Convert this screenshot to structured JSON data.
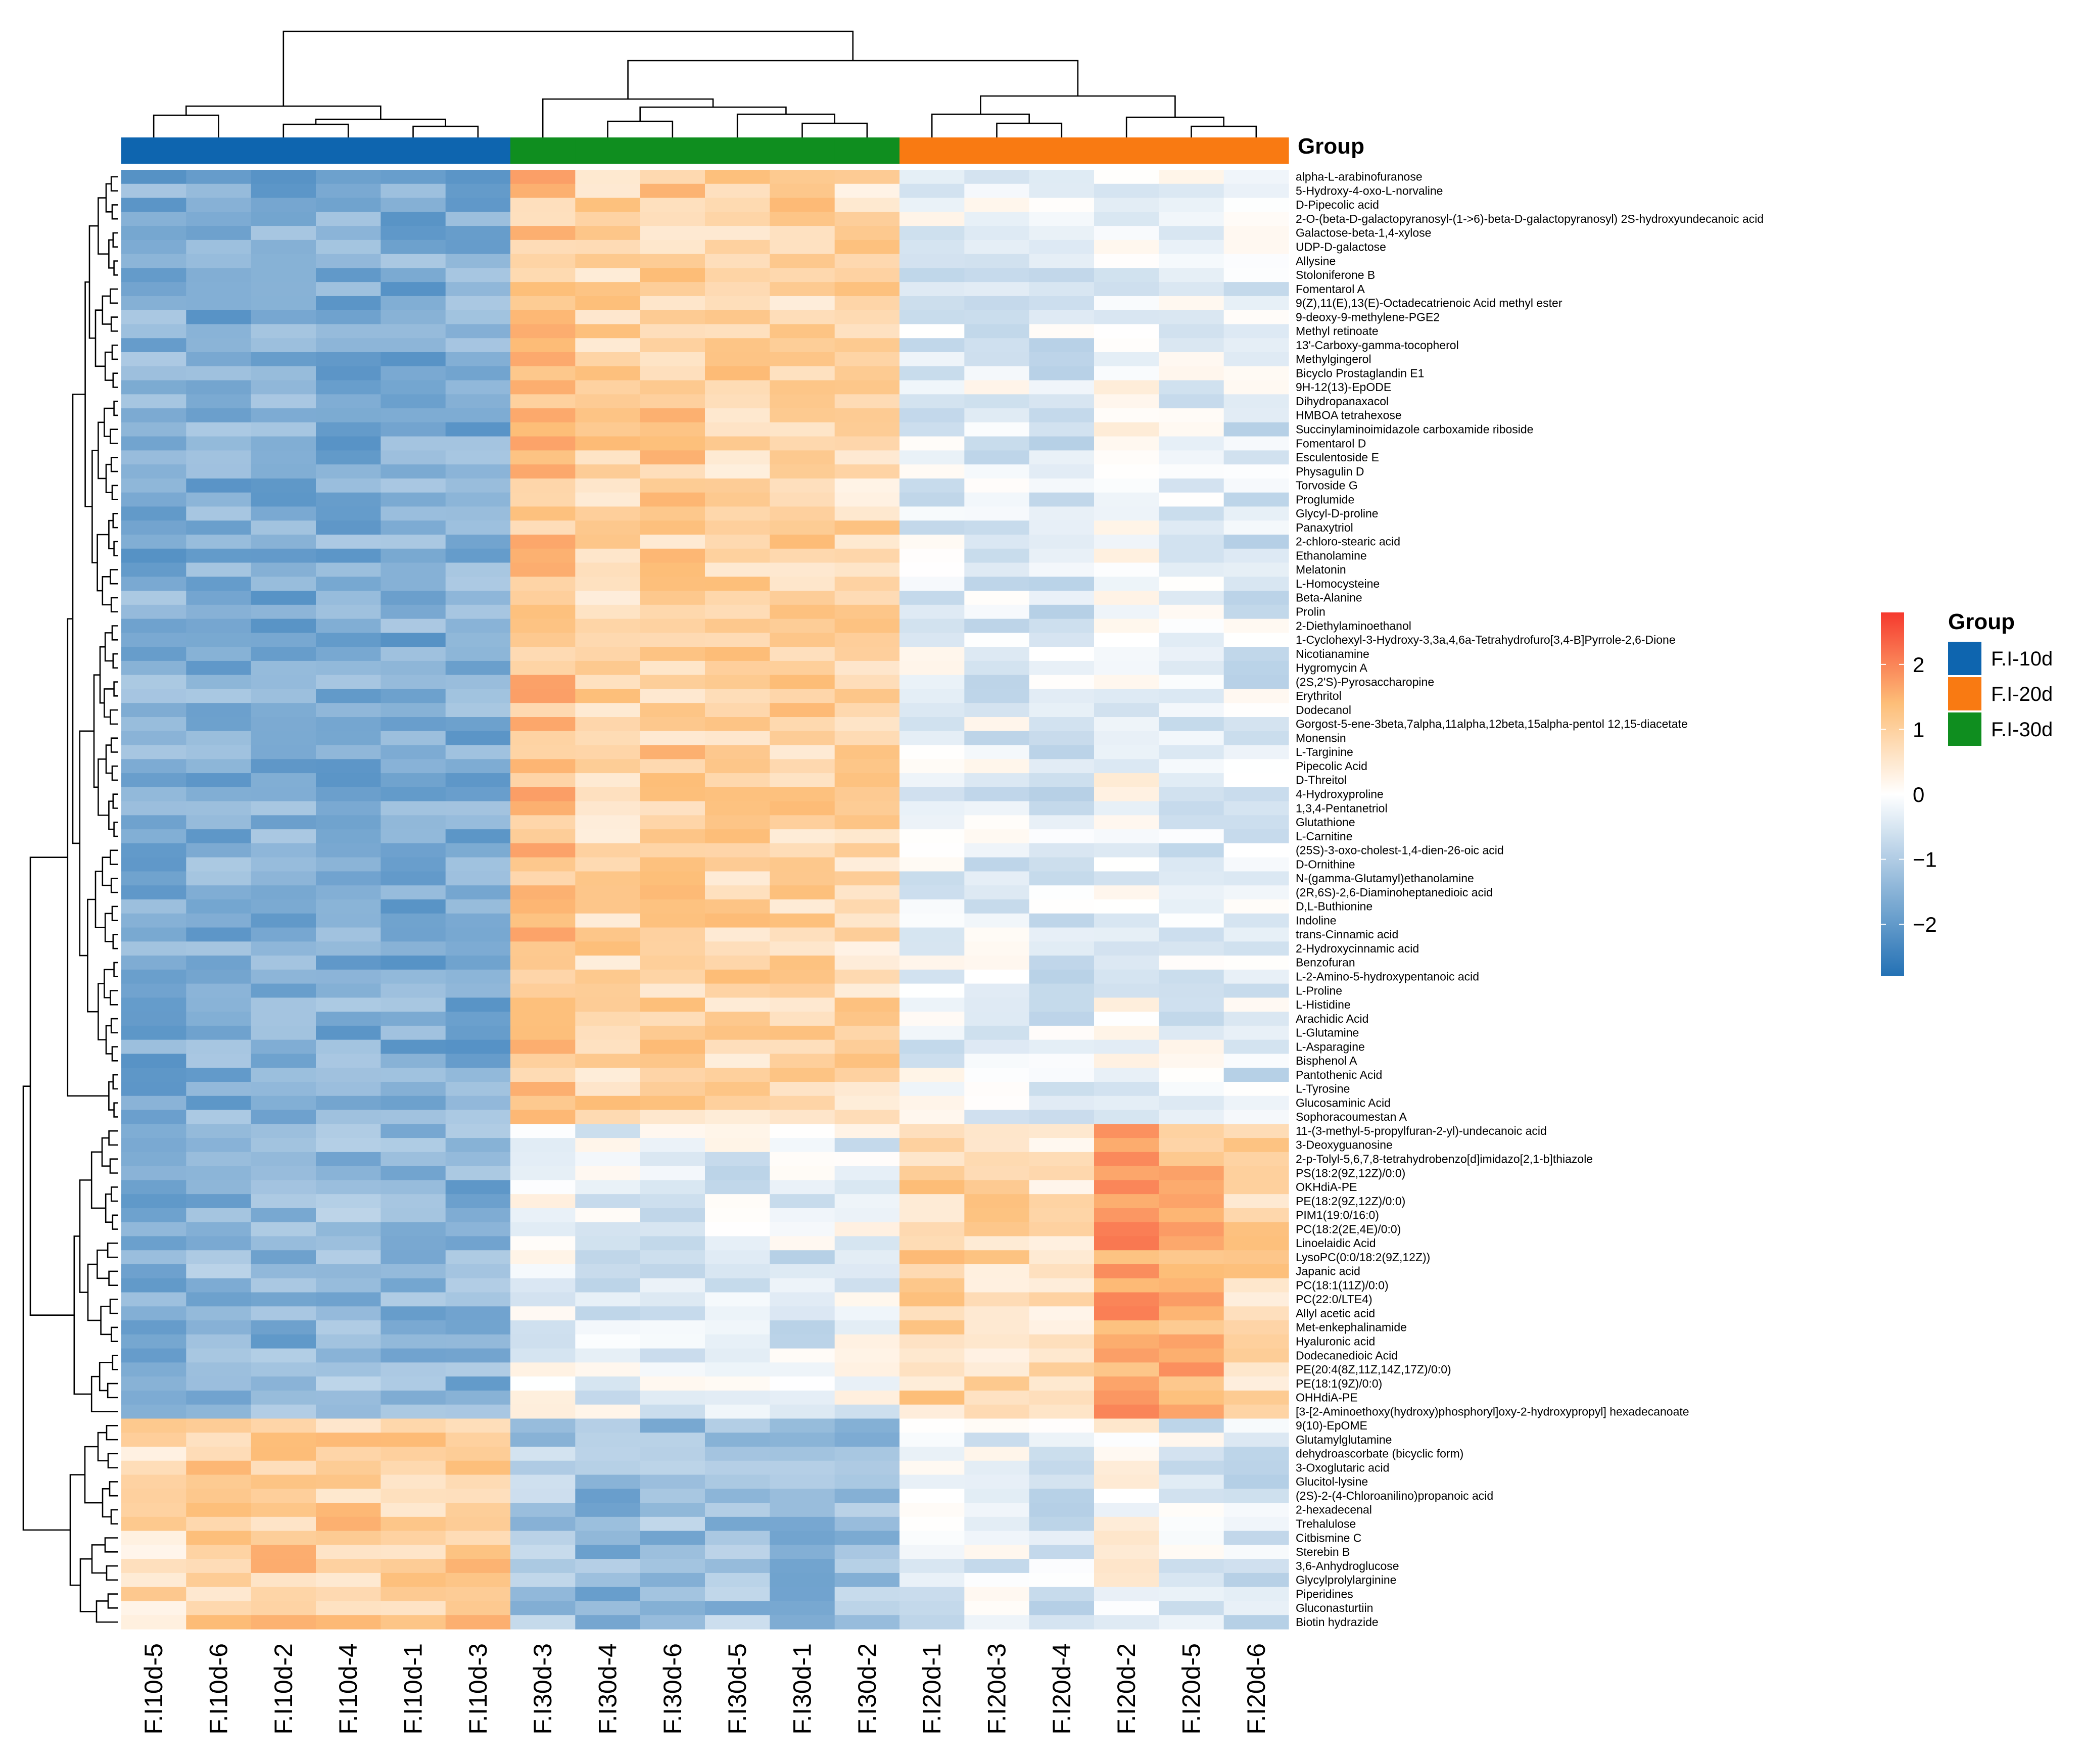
{
  "chart_data": {
    "type": "heatmap",
    "title": "",
    "annotation_title": "Group",
    "columns": [
      "F.I10d-5",
      "F.I10d-6",
      "F.I10d-2",
      "F.I10d-4",
      "F.I10d-1",
      "F.I10d-3",
      "F.I30d-3",
      "F.I30d-4",
      "F.I30d-6",
      "F.I30d-5",
      "F.I30d-1",
      "F.I30d-2",
      "F.I20d-1",
      "F.I20d-3",
      "F.I20d-4",
      "F.I20d-2",
      "F.I20d-5",
      "F.I20d-6"
    ],
    "column_groups": [
      "F.I-10d",
      "F.I-10d",
      "F.I-10d",
      "F.I-10d",
      "F.I-10d",
      "F.I-10d",
      "F.I-30d",
      "F.I-30d",
      "F.I-30d",
      "F.I-30d",
      "F.I-30d",
      "F.I-30d",
      "F.I-20d",
      "F.I-20d",
      "F.I-20d",
      "F.I-20d",
      "F.I-20d",
      "F.I-20d"
    ],
    "groups": [
      {
        "name": "F.I-10d",
        "color": "#0E65AF"
      },
      {
        "name": "F.I-20d",
        "color": "#F97A12"
      },
      {
        "name": "F.I-30d",
        "color": "#0F8E1F"
      }
    ],
    "color_scale": {
      "range": [
        -2.8,
        2.8
      ],
      "ticks": [
        -2,
        -1,
        0,
        1,
        2
      ],
      "low": "#2371B4",
      "mid": "#FFFFFF",
      "high": "#F6392E"
    },
    "row_clusters": [
      {
        "start": 0,
        "end": 67,
        "profile": [
          -1.6,
          -1.6,
          -1.6,
          -1.6,
          -1.6,
          -1.6,
          1.2,
          0.9,
          1.0,
          0.9,
          0.9,
          0.8,
          -0.3,
          -0.3,
          -0.4,
          -0.1,
          -0.3,
          -0.4
        ]
      },
      {
        "start": 68,
        "end": 88,
        "profile": [
          -1.5,
          -1.4,
          -1.5,
          -1.3,
          -1.4,
          -1.5,
          -0.1,
          -0.3,
          -0.3,
          -0.3,
          -0.4,
          -0.2,
          0.9,
          0.8,
          0.6,
          1.7,
          1.4,
          0.9
        ]
      },
      {
        "start": 89,
        "end": 103,
        "profile": [
          0.7,
          1.0,
          1.1,
          1.0,
          1.0,
          1.1,
          -1.1,
          -1.4,
          -1.3,
          -1.2,
          -1.3,
          -1.2,
          -0.3,
          -0.2,
          -0.4,
          0.0,
          -0.3,
          -0.4
        ]
      }
    ],
    "rows": [
      "alpha-L-arabinofuranose",
      "5-Hydroxy-4-oxo-L-norvaline",
      "D-Pipecolic acid",
      "2-O-(beta-D-galactopyranosyl-(1->6)-beta-D-galactopyranosyl) 2S-hydroxyundecanoic acid",
      "Galactose-beta-1,4-xylose",
      "UDP-D-galactose",
      "Allysine",
      "Stoloniferone B",
      "Fomentarol A",
      "9(Z),11(E),13(E)-Octadecatrienoic Acid methyl ester",
      "9-deoxy-9-methylene-PGE2",
      "Methyl retinoate",
      "13'-Carboxy-gamma-tocopherol",
      "Methylgingerol",
      "Bicyclo Prostaglandin E1",
      "9H-12(13)-EpODE",
      "Dihydropanaxacol",
      "HMBOA tetrahexose",
      "Succinylaminoimidazole carboxamide riboside",
      "Fomentarol D",
      "Esculentoside E",
      "Physagulin D",
      "Torvoside G",
      "Proglumide",
      "Glycyl-D-proline",
      "Panaxytriol",
      "2-chloro-stearic acid",
      "Ethanolamine",
      "Melatonin",
      "L-Homocysteine",
      "Beta-Alanine",
      "Prolin",
      "2-Diethylaminoethanol",
      "1-Cyclohexyl-3-Hydroxy-3,3a,4,6a-Tetrahydrofuro[3,4-B]Pyrrole-2,6-Dione",
      "Nicotianamine",
      "Hygromycin A",
      "(2S,2'S)-Pyrosaccharopine",
      "Erythritol",
      "Dodecanol",
      "Gorgost-5-ene-3beta,7alpha,11alpha,12beta,15alpha-pentol 12,15-diacetate",
      "Monensin",
      "L-Targinine",
      "Pipecolic Acid",
      "D-Threitol",
      "4-Hydroxyproline",
      "1,3,4-Pentanetriol",
      "Glutathione",
      "L-Carnitine",
      "(25S)-3-oxo-cholest-1,4-dien-26-oic acid",
      "D-Ornithine",
      "N-(gamma-Glutamyl)ethanolamine",
      "(2R,6S)-2,6-Diaminoheptanedioic acid",
      "D,L-Buthionine",
      "Indoline",
      "trans-Cinnamic acid",
      "2-Hydroxycinnamic acid",
      "Benzofuran",
      "L-2-Amino-5-hydroxypentanoic acid",
      "L-Proline",
      "L-Histidine",
      "Arachidic Acid",
      "L-Glutamine",
      "L-Asparagine",
      "Bisphenol A",
      "Pantothenic Acid",
      "L-Tyrosine",
      "Glucosaminic Acid",
      "Sophoracoumestan A",
      "11-(3-methyl-5-propylfuran-2-yl)-undecanoic acid",
      "3-Deoxyguanosine",
      "2-p-Tolyl-5,6,7,8-tetrahydrobenzo[d]imidazo[2,1-b]thiazole",
      "PS(18:2(9Z,12Z)/0:0)",
      "OKHdiA-PE",
      "PE(18:2(9Z,12Z)/0:0)",
      "PIM1(19:0/16:0)",
      "PC(18:2(2E,4E)/0:0)",
      "Linoelaidic Acid",
      "LysoPC(0:0/18:2(9Z,12Z))",
      "Japanic acid",
      "PC(18:1(11Z)/0:0)",
      "PC(22:0/LTE4)",
      "Allyl acetic acid",
      "Met-enkephalinamide",
      "Hyaluronic acid",
      "Dodecanedioic Acid",
      "PE(20:4(8Z,11Z,14Z,17Z)/0:0)",
      "PE(18:1(9Z)/0:0)",
      "OHHdiA-PE",
      "[3-[2-Aminoethoxy(hydroxy)phosphoryl]oxy-2-hydroxypropyl] hexadecanoate",
      "9(10)-EpOME",
      "Glutamylglutamine",
      "dehydroascorbate (bicyclic form)",
      "3-Oxoglutaric acid",
      "Glucitol-lysine",
      "(2S)-2-(4-Chloroanilino)propanoic acid",
      "2-hexadecenal",
      "Trehalulose",
      "Citbismine C",
      "Sterebin B",
      "3,6-Anhydroglucose",
      "Glycylprolylarginine",
      "Piperidines",
      "Gluconasturtiin",
      "Biotin hydrazide"
    ]
  }
}
